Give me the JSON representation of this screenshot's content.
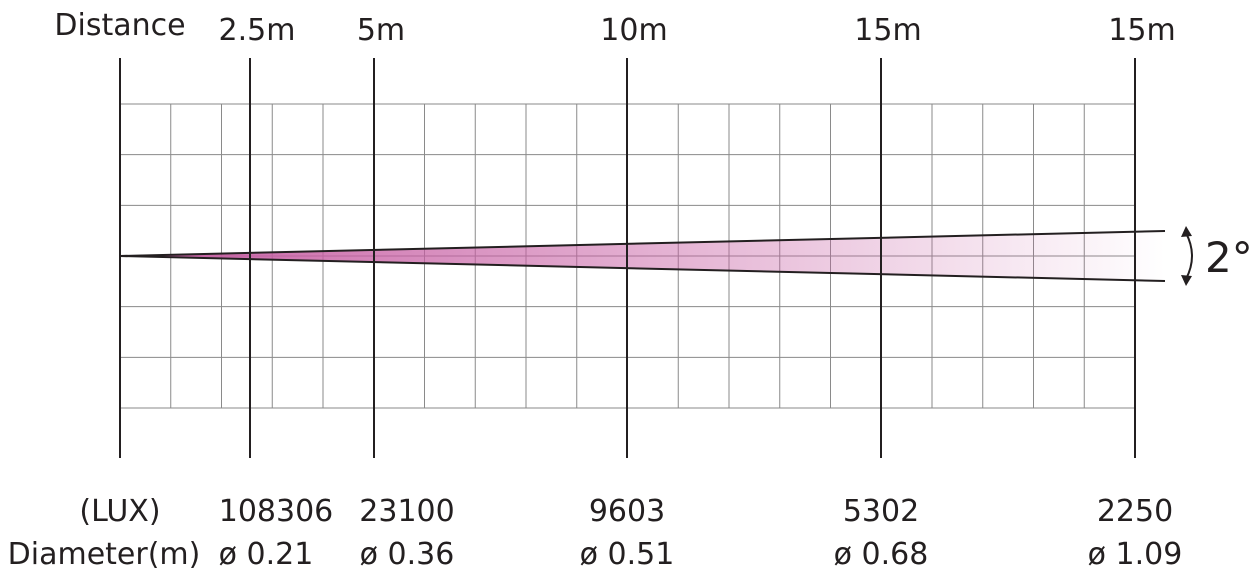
{
  "distance_header": "Distance",
  "lux_header": "(LUX)",
  "diameter_header": "Diameter(m)",
  "beam_angle_label": "2°",
  "beam_color": "#c75ea3",
  "line_color": "#231f20",
  "grid_color": "#8a8a8a",
  "markers": [
    {
      "distance_label": "2.5m",
      "lux": "108306",
      "diameter": "ø 0.21"
    },
    {
      "distance_label": "5m",
      "lux": "23100",
      "diameter": "ø 0.36"
    },
    {
      "distance_label": "10m",
      "lux": "9603",
      "diameter": "ø 0.51"
    },
    {
      "distance_label": "15m",
      "lux": "5302",
      "diameter": "ø 0.68"
    },
    {
      "distance_label": "15m",
      "lux": "2250",
      "diameter": "ø 1.09"
    }
  ]
}
